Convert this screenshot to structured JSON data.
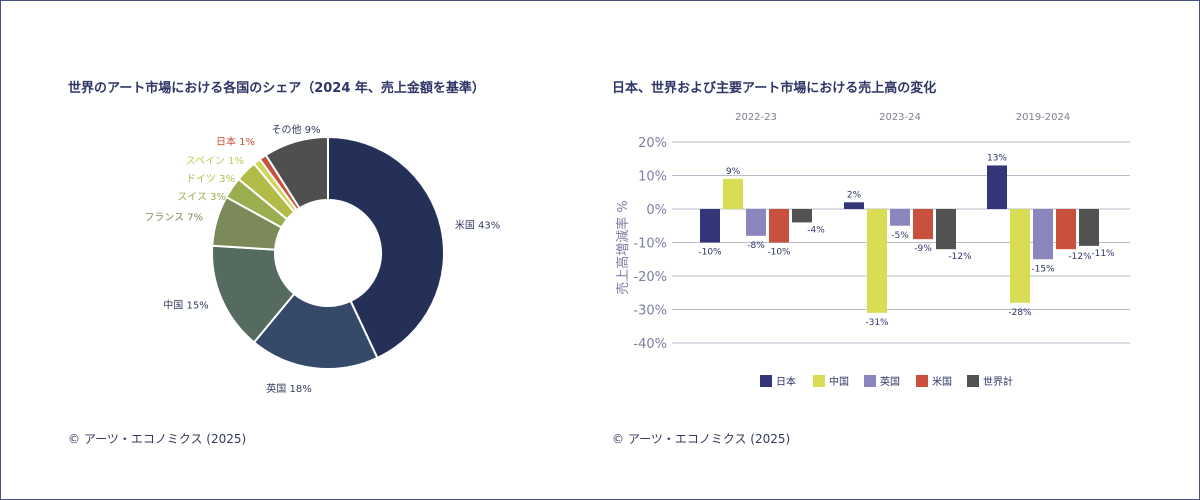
{
  "chart_data": [
    {
      "type": "pie",
      "title": "世界のアート市場における各国のシェア（2024 年、売上金額を基準）",
      "source": "© アーツ・エコノミクス (2025)",
      "donut": true,
      "slices": [
        {
          "label": "米国 43%",
          "value": 43,
          "color": "#243058",
          "label_color": "#333a60"
        },
        {
          "label": "英国 18%",
          "value": 18,
          "color": "#344a68",
          "label_color": "#333a60"
        },
        {
          "label": "中国 15%",
          "value": 15,
          "color": "#566b5f",
          "label_color": "#333a60"
        },
        {
          "label": "フランス 7%",
          "value": 7,
          "color": "#7b8a58",
          "label_color": "#7b8a58"
        },
        {
          "label": "スイス 3%",
          "value": 3,
          "color": "#9aad4f",
          "label_color": "#9aad4f"
        },
        {
          "label": "ドイツ 3%",
          "value": 3,
          "color": "#b3bb48",
          "label_color": "#b3bb48"
        },
        {
          "label": "スペイン 1%",
          "value": 1,
          "color": "#d3d55a",
          "label_color": "#c8ca50"
        },
        {
          "label": "日本 1%",
          "value": 1,
          "color": "#c9503c",
          "label_color": "#c9503c"
        },
        {
          "label": "その他 9%",
          "value": 9,
          "color": "#4f4f4f",
          "label_color": "#333a60"
        }
      ]
    },
    {
      "type": "bar",
      "title": "日本、世界および主要アート市場における売上高の変化",
      "source": "© アーツ・エコノミクス (2025)",
      "ylabel": "売上高増減率 %",
      "ylim": [
        -40,
        20
      ],
      "yticks": [
        "20%",
        "10%",
        "0%",
        "-10%",
        "-20%",
        "-30%",
        "-40%"
      ],
      "grid": true,
      "legend": "bottom",
      "categories": [
        "2022-23",
        "2023-24",
        "2019-2024"
      ],
      "series": [
        {
          "name": "日本",
          "color": "#35367a",
          "values": [
            -10,
            2,
            13
          ],
          "labels": [
            "-10%",
            "2%",
            "13%"
          ]
        },
        {
          "name": "中国",
          "color": "#d9dc55",
          "values": [
            9,
            -31,
            -28
          ],
          "labels": [
            "9%",
            "-31%",
            "-28%"
          ]
        },
        {
          "name": "英国",
          "color": "#8a86bd",
          "values": [
            -8,
            -5,
            -15
          ],
          "labels": [
            "-8%",
            "-5%",
            "-15%"
          ]
        },
        {
          "name": "米国",
          "color": "#c9503c",
          "values": [
            -10,
            -9,
            -12
          ],
          "labels": [
            "-10%",
            "-9%",
            "-12%"
          ]
        },
        {
          "name": "世界計",
          "color": "#525252",
          "values": [
            -4,
            -12,
            -11
          ],
          "labels": [
            "-4%",
            "-12%",
            "-11%"
          ]
        }
      ]
    }
  ]
}
